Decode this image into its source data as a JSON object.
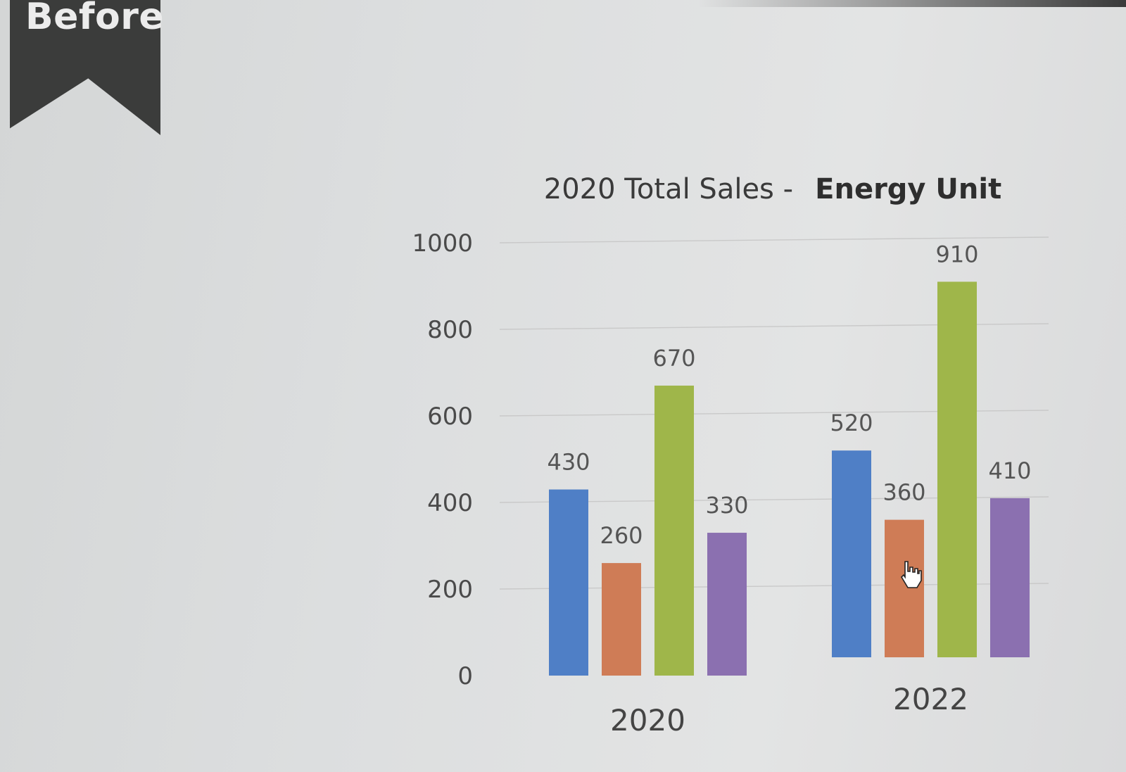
{
  "badge": {
    "label": "Before"
  },
  "chart_data": {
    "type": "bar",
    "title": "2020 Total Sales -",
    "title_emphasis": "Energy Unit",
    "xlabel": "",
    "ylabel": "",
    "ylim": [
      0,
      1000
    ],
    "yticks": [
      "0",
      "200",
      "400",
      "600",
      "800",
      "1000"
    ],
    "grid": true,
    "categories": [
      "2020",
      "2022"
    ],
    "series": [
      {
        "values": [
          430,
          520
        ],
        "color": "#4f7fc6"
      },
      {
        "values": [
          260,
          360
        ],
        "color": "#cf7c56"
      },
      {
        "values": [
          670,
          910
        ],
        "color": "#9fb64a"
      },
      {
        "values": [
          330,
          410
        ],
        "color": "#8b70b0"
      }
    ]
  },
  "cursor": {
    "icon": "hand-pointer-icon"
  }
}
